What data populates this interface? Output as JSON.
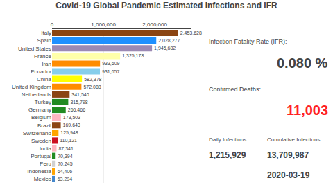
{
  "chart_data": {
    "type": "bar",
    "title": "Covid-19 Global Pandemic Estimated Infections and IFR",
    "orientation": "horizontal",
    "categories": [
      "Italy",
      "Spain",
      "United States",
      "France",
      "Iran",
      "Ecuador",
      "China",
      "United Kingdom",
      "Netherlands",
      "Turkey",
      "Germany",
      "Belgium",
      "Brazil",
      "Switzerland",
      "Sweden",
      "India",
      "Portugal",
      "Peru",
      "Indonesia",
      "Mexico"
    ],
    "values": [
      2453628,
      2028277,
      1945682,
      1325178,
      933609,
      931657,
      582378,
      572088,
      341540,
      315798,
      266466,
      173503,
      169643,
      125948,
      110121,
      87341,
      70394,
      70245,
      64406,
      63294
    ],
    "value_labels": [
      "2,453,628",
      "2,028,277",
      "1,945,682",
      "1,325,178",
      "933,609",
      "931,657",
      "582,378",
      "572,088",
      "341,540",
      "315,798",
      "266,466",
      "173,503",
      "169,643",
      "125,948",
      "110,121",
      "87,341",
      "70,394",
      "70,245",
      "64,406",
      "63,294"
    ],
    "colors": [
      "#8B4513",
      "#1E90FF",
      "#9B89B4",
      "#FFFFAA",
      "#FF8C00",
      "#87CEEB",
      "#FFFF00",
      "#FF8C00",
      "#8B4513",
      "#228B22",
      "#228B22",
      "#FFB6C1",
      "#8B4513",
      "#FFA500",
      "#CC1122",
      "#FFB6C1",
      "#228B22",
      "#D0D0D0",
      "#FFA500",
      "#4488CC"
    ],
    "data_labels": true,
    "xlim": [
      0,
      2700000
    ],
    "xticks": [
      0,
      {
        "value": 1000000,
        "label": "1,000,000"
      },
      {
        "value": 2000000,
        "label": "2,000,000"
      }
    ],
    "grid": true,
    "annotations": [
      {
        "text": "Infection Fatality Rate (IFR):"
      },
      {
        "text": "0.080 %"
      },
      {
        "text": "Confirmed Deaths:"
      },
      {
        "text": "11,003",
        "color": "#ff2222"
      },
      {
        "text": "Daily Infections:"
      },
      {
        "text": "1,215,929"
      },
      {
        "text": "Cumulative Infections:"
      },
      {
        "text": "13,709,987"
      },
      {
        "text": "2020-03-19"
      }
    ]
  }
}
